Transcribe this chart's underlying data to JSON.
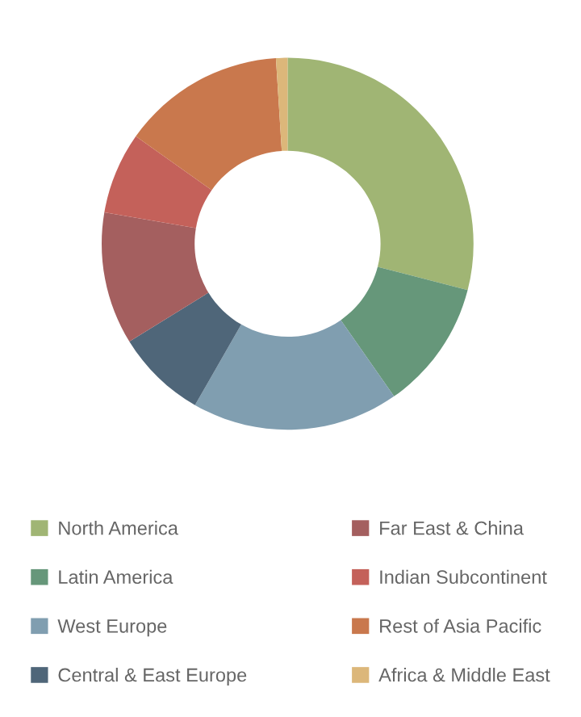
{
  "chart_data": {
    "type": "donut",
    "categories": [
      "North America",
      "Latin America",
      "West Europe",
      "Central & East Europe",
      "Far East & China",
      "Indian Subcontinent",
      "Rest of Asia Pacific",
      "Africa & Middle East"
    ],
    "values": [
      29.0,
      11.3,
      18.0,
      7.9,
      11.5,
      7.1,
      14.2,
      1.0
    ],
    "colors": [
      "#a0b574",
      "#66977a",
      "#809eb0",
      "#4f6679",
      "#a45f5f",
      "#c4615a",
      "#c9784d",
      "#dcb77a"
    ],
    "legend": "bottom"
  }
}
